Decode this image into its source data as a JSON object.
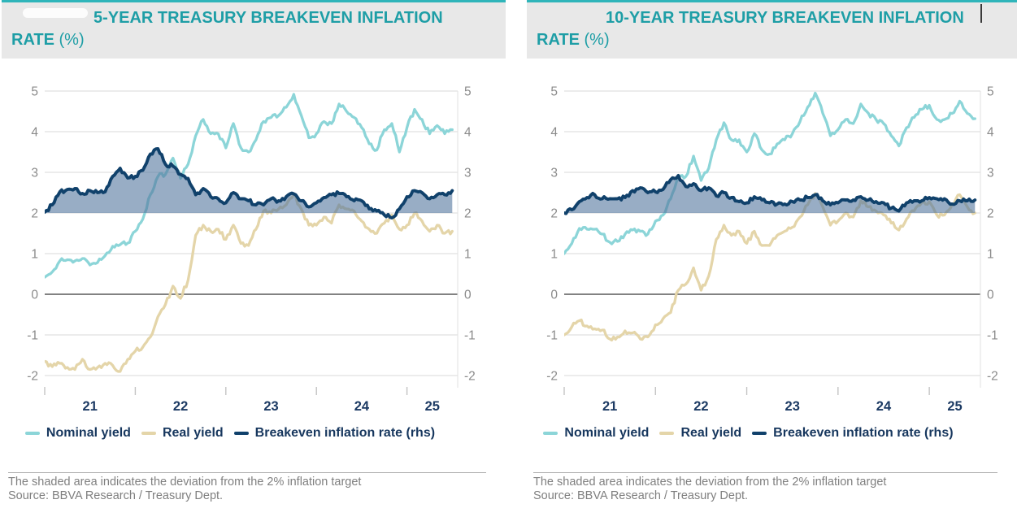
{
  "theme": {
    "accent_teal_border": "#2FB5BA",
    "title_teal": "#1E9EA6",
    "header_background": "#E8E8E8",
    "nominal_yield_color": "#8CD5D8",
    "real_yield_color": "#E4D5A9",
    "breakeven_color": "#10416B",
    "shading_color": "#54779E",
    "grid_color": "#D9D9D9",
    "zero_line_color": "#595959",
    "axis_label_gray": "#8A8A8A",
    "x_label_navy": "#1C3A63",
    "note_gray": "#7F7F7F"
  },
  "panels": [
    {
      "title_line1": "5-YEAR TREASURY BREAKEVEN INFLATION",
      "title_line2": "RATE",
      "title_unit": " (%)",
      "note": "The shaded area indicates the deviation from the 2% inflation target",
      "source": "Source: BBVA Research / Treasury Dept."
    },
    {
      "title_line1": "10-YEAR TREASURY BREAKEVEN INFLATION",
      "title_line2": "RATE",
      "title_unit": " (%)",
      "note": "The shaded area indicates the deviation from the 2% inflation target",
      "source": "Source: BBVA Research / Treasury Dept."
    }
  ],
  "chart_data": [
    {
      "type": "line",
      "title": "5-YEAR TREASURY BREAKEVEN INFLATION RATE (%)",
      "x_start_year": 2021,
      "x_step_months": 1,
      "x_end": 2025.56,
      "x_ticks": [
        2021,
        2022,
        2023,
        2024,
        2025
      ],
      "x_tick_labels": [
        "21",
        "22",
        "23",
        "24",
        "25"
      ],
      "y_ticks": [
        5,
        4,
        3,
        2,
        1,
        0,
        -1,
        -2
      ],
      "ylim": [
        -2.3,
        5.3
      ],
      "grid": true,
      "legend_position": "bottom",
      "target_level": 2,
      "shading_note": "area between breakeven line and 2% filled",
      "series": [
        {
          "name": "Nominal yield",
          "color": "#8CD5D8",
          "axis": "left",
          "values": [
            0.42,
            0.55,
            0.82,
            0.85,
            0.82,
            0.88,
            0.72,
            0.78,
            0.95,
            1.18,
            1.22,
            1.26,
            1.55,
            1.85,
            2.45,
            2.9,
            2.95,
            3.35,
            2.85,
            3.2,
            3.9,
            4.3,
            3.95,
            3.95,
            3.6,
            4.2,
            3.6,
            3.5,
            3.8,
            4.25,
            4.35,
            4.4,
            4.6,
            4.92,
            4.4,
            3.85,
            3.95,
            4.25,
            4.2,
            4.68,
            4.5,
            4.35,
            4.1,
            3.7,
            3.55,
            4.05,
            4.2,
            3.5,
            4.1,
            4.55,
            4.3,
            3.95,
            4.15,
            3.95,
            4.05
          ]
        },
        {
          "name": "Real yield",
          "color": "#E4D5A9",
          "axis": "left",
          "values": [
            -1.65,
            -1.78,
            -1.7,
            -1.8,
            -1.85,
            -1.6,
            -1.85,
            -1.8,
            -1.7,
            -1.75,
            -1.9,
            -1.6,
            -1.4,
            -1.3,
            -1.05,
            -0.55,
            -0.25,
            0.2,
            -0.1,
            0.35,
            1.45,
            1.7,
            1.55,
            1.6,
            1.35,
            1.7,
            1.25,
            1.2,
            1.6,
            2.05,
            2.0,
            2.1,
            2.2,
            2.45,
            2.1,
            1.7,
            1.7,
            1.9,
            1.75,
            2.2,
            2.1,
            2.05,
            1.8,
            1.6,
            1.5,
            1.75,
            1.95,
            1.6,
            1.7,
            2.0,
            1.8,
            1.55,
            1.7,
            1.5,
            1.55
          ]
        },
        {
          "name": "Breakeven inflation rate (rhs)",
          "color": "#10416B",
          "axis": "right",
          "fill_to_target": true,
          "values": [
            2.02,
            2.2,
            2.52,
            2.58,
            2.6,
            2.48,
            2.55,
            2.5,
            2.52,
            2.9,
            3.1,
            2.86,
            2.9,
            3.05,
            3.45,
            3.58,
            3.2,
            3.15,
            2.95,
            2.85,
            2.45,
            2.6,
            2.4,
            2.35,
            2.25,
            2.5,
            2.35,
            2.3,
            2.2,
            2.2,
            2.35,
            2.3,
            2.4,
            2.47,
            2.3,
            2.15,
            2.25,
            2.38,
            2.45,
            2.48,
            2.4,
            2.3,
            2.3,
            2.1,
            2.05,
            1.95,
            1.88,
            2.1,
            2.4,
            2.55,
            2.5,
            2.35,
            2.45,
            2.45,
            2.55
          ]
        }
      ]
    },
    {
      "type": "line",
      "title": "10-YEAR TREASURY BREAKEVEN INFLATION RATE (%)",
      "x_start_year": 2021,
      "x_step_months": 1,
      "x_end": 2025.56,
      "x_ticks": [
        2021,
        2022,
        2023,
        2024,
        2025
      ],
      "x_tick_labels": [
        "21",
        "22",
        "23",
        "24",
        "25"
      ],
      "y_ticks": [
        5,
        4,
        3,
        2,
        1,
        0,
        -1,
        -2
      ],
      "ylim": [
        -2.3,
        5.3
      ],
      "grid": true,
      "legend_position": "bottom",
      "target_level": 2,
      "shading_note": "area between breakeven line and 2% filled",
      "series": [
        {
          "name": "Nominal yield",
          "color": "#8CD5D8",
          "axis": "left",
          "values": [
            1.0,
            1.25,
            1.62,
            1.6,
            1.6,
            1.48,
            1.28,
            1.3,
            1.48,
            1.58,
            1.55,
            1.48,
            1.8,
            1.95,
            2.35,
            2.9,
            2.9,
            3.4,
            2.8,
            3.1,
            3.8,
            4.22,
            3.8,
            3.8,
            3.5,
            3.95,
            3.55,
            3.45,
            3.7,
            3.8,
            3.95,
            4.25,
            4.6,
            4.95,
            4.45,
            3.9,
            4.05,
            4.3,
            4.2,
            4.68,
            4.45,
            4.3,
            4.2,
            3.9,
            3.65,
            4.1,
            4.35,
            4.55,
            4.65,
            4.3,
            4.3,
            4.45,
            4.75,
            4.45,
            4.32
          ]
        },
        {
          "name": "Real yield",
          "color": "#E4D5A9",
          "axis": "left",
          "values": [
            -1.0,
            -0.8,
            -0.65,
            -0.78,
            -0.85,
            -0.88,
            -1.1,
            -1.05,
            -0.9,
            -0.95,
            -1.1,
            -1.05,
            -0.75,
            -0.6,
            -0.45,
            0.1,
            0.25,
            0.65,
            0.1,
            0.45,
            1.35,
            1.7,
            1.45,
            1.55,
            1.25,
            1.55,
            1.2,
            1.2,
            1.45,
            1.55,
            1.65,
            1.9,
            2.2,
            2.48,
            2.15,
            1.7,
            1.8,
            2.0,
            1.9,
            2.3,
            2.15,
            2.05,
            1.95,
            1.75,
            1.58,
            1.85,
            2.05,
            2.25,
            2.28,
            1.95,
            1.95,
            2.2,
            2.45,
            2.15,
            2.0
          ]
        },
        {
          "name": "Breakeven inflation rate (rhs)",
          "color": "#10416B",
          "axis": "right",
          "fill_to_target": true,
          "values": [
            2.0,
            2.08,
            2.28,
            2.38,
            2.45,
            2.35,
            2.35,
            2.35,
            2.38,
            2.55,
            2.62,
            2.5,
            2.52,
            2.58,
            2.82,
            2.92,
            2.65,
            2.72,
            2.55,
            2.62,
            2.42,
            2.5,
            2.38,
            2.28,
            2.25,
            2.4,
            2.32,
            2.25,
            2.22,
            2.22,
            2.28,
            2.32,
            2.38,
            2.45,
            2.3,
            2.2,
            2.25,
            2.32,
            2.32,
            2.4,
            2.32,
            2.28,
            2.25,
            2.12,
            2.05,
            2.25,
            2.3,
            2.3,
            2.38,
            2.35,
            2.35,
            2.22,
            2.3,
            2.3,
            2.32
          ]
        }
      ]
    }
  ]
}
